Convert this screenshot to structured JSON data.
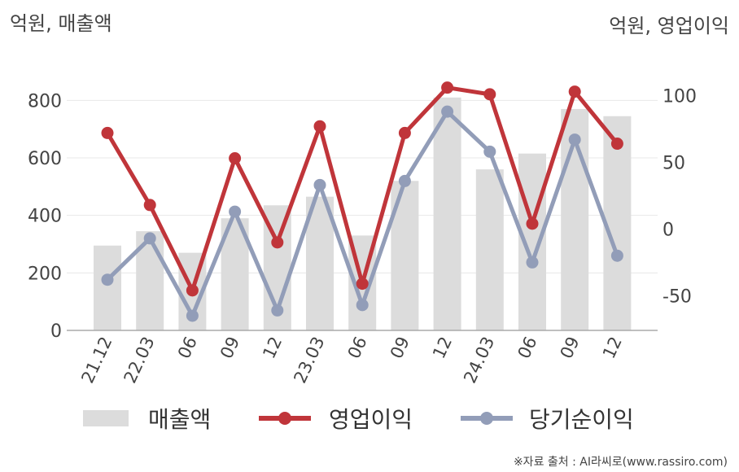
{
  "unit_left": "억원, 매출액",
  "unit_right": "억원, 영업이익",
  "source": "※자료 출처 : AI라씨로(www.rassiro.com)",
  "colors": {
    "bar": "#dcdcdc",
    "operating": "#c0353a",
    "net": "#929db8",
    "grid": "#e8e8e8",
    "axis": "#aaaaaa"
  },
  "chart_data": {
    "type": "bar",
    "categories": [
      "21.12",
      "22.03",
      "06",
      "09",
      "12",
      "23.03",
      "06",
      "09",
      "12",
      "24.03",
      "06",
      "09",
      "12"
    ],
    "left_axis": {
      "ticks": [
        0,
        200,
        400,
        600,
        800
      ],
      "range": [
        0,
        900
      ]
    },
    "right_axis": {
      "ticks": [
        -50,
        0,
        50,
        100
      ],
      "range": [
        -76,
        118
      ]
    },
    "series": [
      {
        "name": "매출액",
        "type": "bar",
        "axis": "left",
        "values": [
          295,
          345,
          270,
          390,
          435,
          465,
          330,
          520,
          810,
          560,
          615,
          770,
          745
        ]
      },
      {
        "name": "영업이익",
        "type": "line",
        "axis": "right",
        "values": [
          72,
          18,
          -46,
          53,
          -10,
          77,
          -41,
          72,
          106,
          101,
          4,
          103,
          64
        ]
      },
      {
        "name": "당기순이익",
        "type": "line",
        "axis": "right",
        "values": [
          -38,
          -7,
          -65,
          13,
          -61,
          33,
          -57,
          36,
          88,
          58,
          -25,
          67,
          -20
        ]
      }
    ]
  }
}
